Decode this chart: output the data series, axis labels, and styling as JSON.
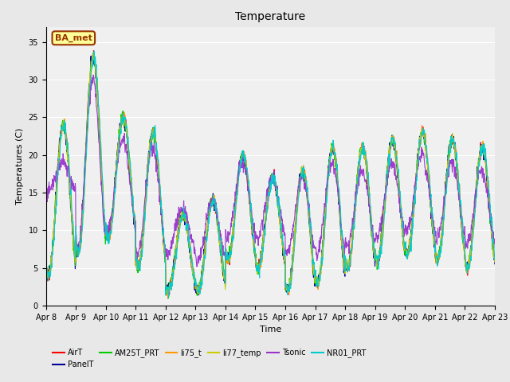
{
  "title": "Temperature",
  "ylabel": "Temperatures (C)",
  "xlabel": "Time",
  "ylim": [
    0,
    37
  ],
  "xtick_labels": [
    "Apr 8",
    "Apr 9",
    "Apr 10",
    "Apr 11",
    "Apr 12",
    "Apr 13",
    "Apr 14",
    "Apr 15",
    "Apr 16",
    "Apr 17",
    "Apr 18",
    "Apr 19",
    "Apr 20",
    "Apr 21",
    "Apr 22",
    "Apr 23"
  ],
  "series": {
    "AirT": {
      "color": "#ff0000",
      "lw": 0.8
    },
    "PanelT": {
      "color": "#000099",
      "lw": 0.8
    },
    "AM25T_PRT": {
      "color": "#00cc00",
      "lw": 0.8
    },
    "li75_t": {
      "color": "#ff9900",
      "lw": 0.8
    },
    "li77_temp": {
      "color": "#cccc00",
      "lw": 0.8
    },
    "Tsonic": {
      "color": "#9933cc",
      "lw": 0.8
    },
    "NR01_PRT": {
      "color": "#00cccc",
      "lw": 0.8
    }
  },
  "annotation": {
    "text": "BA_met",
    "facecolor": "#ffff99",
    "edgecolor": "#993300",
    "textcolor": "#993300",
    "fontsize": 8,
    "fontweight": "bold"
  },
  "fig_bg": "#e8e8e8",
  "plot_bg": "#f0f0f0",
  "grid_color": "#ffffff",
  "title_fontsize": 10,
  "label_fontsize": 8,
  "tick_fontsize": 7,
  "legend_fontsize": 7,
  "base_t": [
    14,
    20,
    17,
    14,
    7,
    8,
    13,
    11,
    10,
    12,
    13,
    14,
    15,
    14,
    13
  ],
  "amps": [
    10,
    13,
    8,
    9,
    5,
    6,
    7,
    6,
    8,
    9,
    8,
    8,
    8,
    8,
    8
  ],
  "tsonic_base": [
    17,
    19,
    16,
    14,
    10,
    10,
    14,
    13,
    12,
    13,
    13,
    14,
    15,
    14,
    13
  ],
  "tsonic_amp": [
    2,
    11,
    6,
    7,
    3,
    4,
    5,
    4,
    5,
    6,
    5,
    5,
    5,
    5,
    5
  ]
}
